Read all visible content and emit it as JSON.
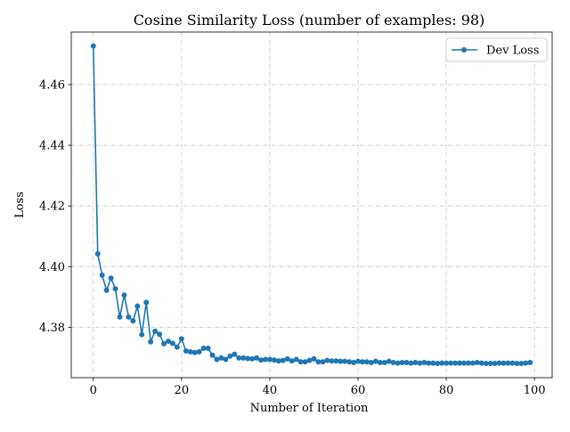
{
  "chart_data": {
    "type": "line",
    "title": "Cosine Similarity Loss (number of examples: 98)",
    "xlabel": "Number of Iteration",
    "ylabel": "Loss",
    "xlim": [
      -5,
      104
    ],
    "ylim": [
      4.3634,
      4.4773
    ],
    "xticks": [
      0,
      20,
      40,
      60,
      80,
      100
    ],
    "yticks": [
      4.38,
      4.4,
      4.42,
      4.44,
      4.46
    ],
    "ytick_labels": [
      "4.38",
      "4.40",
      "4.42",
      "4.44",
      "4.46"
    ],
    "grid": true,
    "legend_position": "top-right",
    "series": [
      {
        "name": "Dev Loss",
        "color": "#1f77b4",
        "marker": "circle",
        "x": [
          0,
          1,
          2,
          3,
          4,
          5,
          6,
          7,
          8,
          9,
          10,
          11,
          12,
          13,
          14,
          15,
          16,
          17,
          18,
          19,
          20,
          21,
          22,
          23,
          24,
          25,
          26,
          27,
          28,
          29,
          30,
          31,
          32,
          33,
          34,
          35,
          36,
          37,
          38,
          39,
          40,
          41,
          42,
          43,
          44,
          45,
          46,
          47,
          48,
          49,
          50,
          51,
          52,
          53,
          54,
          55,
          56,
          57,
          58,
          59,
          60,
          61,
          62,
          63,
          64,
          65,
          66,
          67,
          68,
          69,
          70,
          71,
          72,
          73,
          74,
          75,
          76,
          77,
          78,
          79,
          80,
          81,
          82,
          83,
          84,
          85,
          86,
          87,
          88,
          89,
          90,
          91,
          92,
          93,
          94,
          95,
          96,
          97,
          98,
          99
        ],
        "values": [
          4.4727,
          4.4042,
          4.3972,
          4.3922,
          4.3962,
          4.3927,
          4.3834,
          4.3906,
          4.3834,
          4.3821,
          4.387,
          4.3776,
          4.3882,
          4.3752,
          4.3787,
          4.3777,
          4.3746,
          4.3754,
          4.3747,
          4.3735,
          4.3762,
          4.3722,
          4.3719,
          4.3717,
          4.3719,
          4.3731,
          4.3731,
          4.3708,
          4.3694,
          4.3699,
          4.3694,
          4.3705,
          4.3711,
          4.3699,
          4.3699,
          4.3697,
          4.3696,
          4.3699,
          4.3692,
          4.3694,
          4.3694,
          4.3692,
          4.3689,
          4.3691,
          4.3696,
          4.3689,
          4.3694,
          4.3686,
          4.3686,
          4.3691,
          4.3696,
          4.3686,
          4.3686,
          4.3691,
          4.3689,
          4.3689,
          4.3688,
          4.3688,
          4.3686,
          4.3684,
          4.3688,
          4.3686,
          4.3686,
          4.3684,
          4.3688,
          4.3684,
          4.3684,
          4.3688,
          4.3684,
          4.3682,
          4.3684,
          4.3684,
          4.3682,
          4.3684,
          4.3682,
          4.3684,
          4.3682,
          4.3682,
          4.3681,
          4.3682,
          4.3682,
          4.3682,
          4.3682,
          4.3682,
          4.3682,
          4.3682,
          4.3682,
          4.3684,
          4.3682,
          4.3681,
          4.3681,
          4.3681,
          4.3682,
          4.3682,
          4.3682,
          4.3682,
          4.3681,
          4.3681,
          4.3682,
          4.3684
        ]
      }
    ]
  }
}
